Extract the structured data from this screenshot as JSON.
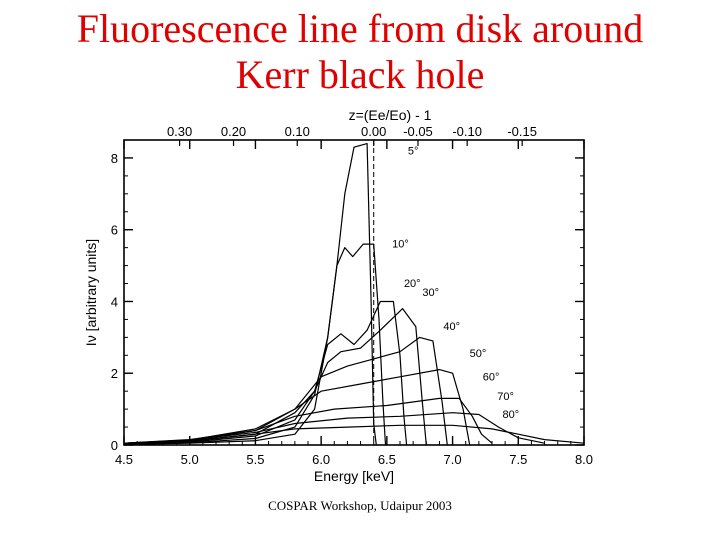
{
  "slide": {
    "title_line1": "Fluorescence line from disk around",
    "title_line2": "Kerr black hole",
    "footer": "COSPAR Workshop, Udaipur 2003",
    "title_color": "#e00000"
  },
  "chart_data": {
    "type": "line",
    "title": "",
    "xlabel": "Energy [keV]",
    "ylabel": "Iν [arbitrary units]",
    "top_axis_label": "z=(Ee/Eo) - 1",
    "xlim": [
      4.5,
      8.0
    ],
    "ylim": [
      0,
      8.5
    ],
    "x_ticks": [
      "4.5",
      "5.0",
      "5.5",
      "6.0",
      "6.5",
      "7.0",
      "7.5",
      "8.0"
    ],
    "y_ticks": [
      "0",
      "2",
      "4",
      "6",
      "8"
    ],
    "top_ticks": [
      {
        "label": "0.30",
        "z": 0.3
      },
      {
        "label": "0.20",
        "z": 0.2
      },
      {
        "label": "0.10",
        "z": 0.1
      },
      {
        "label": "0.00",
        "z": 0.0
      },
      {
        "label": "-0.05",
        "z": -0.05
      },
      {
        "label": "-0.10",
        "z": -0.1
      },
      {
        "label": "-0.15",
        "z": -0.15
      }
    ],
    "rest_energy_keV": 6.4,
    "reference_line_x": 6.4,
    "series": [
      {
        "label": "5°",
        "label_at": [
          6.66,
          8.1
        ],
        "points": [
          [
            4.5,
            0.02
          ],
          [
            5.0,
            0.05
          ],
          [
            5.5,
            0.12
          ],
          [
            5.8,
            0.3
          ],
          [
            5.95,
            1.0
          ],
          [
            6.05,
            3.0
          ],
          [
            6.12,
            5.0
          ],
          [
            6.18,
            7.0
          ],
          [
            6.25,
            8.3
          ],
          [
            6.35,
            8.4
          ],
          [
            6.38,
            4.0
          ],
          [
            6.4,
            0.6
          ],
          [
            6.42,
            0
          ]
        ]
      },
      {
        "label": "10°",
        "label_at": [
          6.54,
          5.5
        ],
        "points": [
          [
            4.5,
            0.02
          ],
          [
            5.0,
            0.06
          ],
          [
            5.5,
            0.18
          ],
          [
            5.8,
            0.5
          ],
          [
            5.95,
            1.4
          ],
          [
            6.05,
            3.0
          ],
          [
            6.12,
            5.0
          ],
          [
            6.18,
            5.5
          ],
          [
            6.24,
            5.25
          ],
          [
            6.32,
            5.6
          ],
          [
            6.4,
            5.6
          ],
          [
            6.44,
            3.5
          ],
          [
            6.47,
            1.2
          ],
          [
            6.49,
            0
          ]
        ]
      },
      {
        "label": "20°",
        "label_at": [
          6.63,
          4.4
        ],
        "points": [
          [
            4.5,
            0.03
          ],
          [
            5.0,
            0.08
          ],
          [
            5.5,
            0.25
          ],
          [
            5.8,
            0.7
          ],
          [
            5.95,
            1.5
          ],
          [
            6.05,
            2.8
          ],
          [
            6.15,
            3.1
          ],
          [
            6.25,
            2.8
          ],
          [
            6.35,
            3.2
          ],
          [
            6.45,
            4.0
          ],
          [
            6.55,
            4.0
          ],
          [
            6.6,
            2.5
          ],
          [
            6.63,
            0.8
          ],
          [
            6.65,
            0
          ]
        ]
      },
      {
        "label": "30°",
        "label_at": [
          6.77,
          4.15
        ],
        "points": [
          [
            4.5,
            0.03
          ],
          [
            5.0,
            0.1
          ],
          [
            5.5,
            0.3
          ],
          [
            5.8,
            0.9
          ],
          [
            5.95,
            1.5
          ],
          [
            6.05,
            2.3
          ],
          [
            6.15,
            2.6
          ],
          [
            6.3,
            2.7
          ],
          [
            6.45,
            3.2
          ],
          [
            6.62,
            3.8
          ],
          [
            6.72,
            3.3
          ],
          [
            6.77,
            1.2
          ],
          [
            6.8,
            0
          ]
        ]
      },
      {
        "label": "40°",
        "label_at": [
          6.93,
          3.2
        ],
        "points": [
          [
            4.5,
            0.04
          ],
          [
            5.0,
            0.12
          ],
          [
            5.5,
            0.4
          ],
          [
            5.8,
            1.0
          ],
          [
            6.0,
            1.9
          ],
          [
            6.2,
            2.2
          ],
          [
            6.4,
            2.4
          ],
          [
            6.6,
            2.6
          ],
          [
            6.75,
            3.0
          ],
          [
            6.85,
            2.9
          ],
          [
            6.92,
            1.2
          ],
          [
            6.96,
            0
          ]
        ]
      },
      {
        "label": "50°",
        "label_at": [
          7.13,
          2.45
        ],
        "points": [
          [
            4.5,
            0.05
          ],
          [
            5.0,
            0.14
          ],
          [
            5.5,
            0.45
          ],
          [
            5.8,
            1.0
          ],
          [
            6.0,
            1.5
          ],
          [
            6.3,
            1.7
          ],
          [
            6.6,
            1.9
          ],
          [
            6.9,
            2.1
          ],
          [
            7.0,
            2.0
          ],
          [
            7.08,
            1.0
          ],
          [
            7.13,
            0
          ]
        ]
      },
      {
        "label": "60°",
        "label_at": [
          7.23,
          1.8
        ],
        "points": [
          [
            4.5,
            0.05
          ],
          [
            5.0,
            0.15
          ],
          [
            5.5,
            0.4
          ],
          [
            5.8,
            0.8
          ],
          [
            6.1,
            1.0
          ],
          [
            6.5,
            1.1
          ],
          [
            6.9,
            1.3
          ],
          [
            7.05,
            1.3
          ],
          [
            7.15,
            0.8
          ],
          [
            7.22,
            0.3
          ],
          [
            7.3,
            0.05
          ]
        ]
      },
      {
        "label": "70°",
        "label_at": [
          7.34,
          1.25
        ],
        "points": [
          [
            4.5,
            0.05
          ],
          [
            5.0,
            0.14
          ],
          [
            5.5,
            0.35
          ],
          [
            5.8,
            0.6
          ],
          [
            6.2,
            0.75
          ],
          [
            6.6,
            0.8
          ],
          [
            7.0,
            0.9
          ],
          [
            7.2,
            0.85
          ],
          [
            7.35,
            0.5
          ],
          [
            7.5,
            0.2
          ],
          [
            7.7,
            0.05
          ]
        ]
      },
      {
        "label": "80°",
        "label_at": [
          7.38,
          0.75
        ],
        "points": [
          [
            4.5,
            0.04
          ],
          [
            5.0,
            0.12
          ],
          [
            5.5,
            0.3
          ],
          [
            5.8,
            0.45
          ],
          [
            6.2,
            0.5
          ],
          [
            6.6,
            0.55
          ],
          [
            7.0,
            0.55
          ],
          [
            7.3,
            0.45
          ],
          [
            7.5,
            0.3
          ],
          [
            7.7,
            0.15
          ],
          [
            8.0,
            0.05
          ]
        ]
      }
    ]
  }
}
